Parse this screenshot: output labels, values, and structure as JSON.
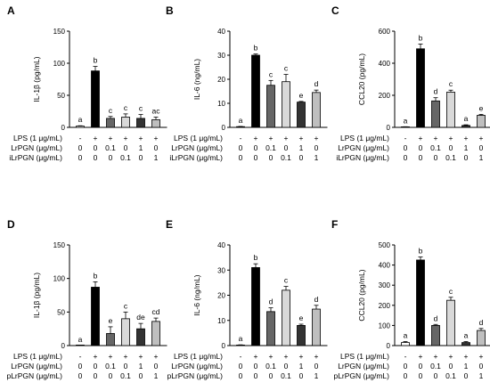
{
  "figure": {
    "bar_colors": [
      "#ffffff",
      "#000000",
      "#666666",
      "#d9d9d9",
      "#333333",
      "#bfbfbf"
    ],
    "condition_symbols": [
      "-",
      "+",
      "+",
      "+",
      "+",
      "+"
    ]
  },
  "chart_data": [
    {
      "panel": "A",
      "type": "bar",
      "ylabel": "IL-1β (pg/mL)",
      "ylim": [
        0,
        150
      ],
      "yticks": [
        "0",
        "50",
        "100",
        "150"
      ],
      "categories": [
        "1",
        "2",
        "3",
        "4",
        "5",
        "6"
      ],
      "values": [
        2,
        88,
        14,
        16,
        14,
        12
      ],
      "errors": [
        0.5,
        7,
        3,
        5,
        6,
        4
      ],
      "letters": [
        "a",
        "b",
        "c",
        "c",
        "c",
        "ac"
      ],
      "rows": [
        {
          "label": "LPS (1 μg/mL)",
          "cells": [
            "-",
            "+",
            "+",
            "+",
            "+",
            "+"
          ]
        },
        {
          "label": "LrPGN (μg/mL)",
          "cells": [
            "0",
            "0",
            "0.1",
            "0",
            "1",
            "0"
          ]
        },
        {
          "label": "iLrPGN (μg/mL)",
          "cells": [
            "0",
            "0",
            "0",
            "0.1",
            "0",
            "1"
          ]
        }
      ]
    },
    {
      "panel": "B",
      "type": "bar",
      "ylabel": "IL-6 (ng/mL)",
      "ylim": [
        0,
        40
      ],
      "yticks": [
        "0",
        "10",
        "20",
        "30",
        "40"
      ],
      "categories": [
        "1",
        "2",
        "3",
        "4",
        "5",
        "6"
      ],
      "values": [
        0.3,
        30,
        17.5,
        19,
        10.5,
        14.5
      ],
      "errors": [
        0.1,
        0.5,
        2,
        3,
        0.3,
        1
      ],
      "letters": [
        "a",
        "b",
        "c",
        "c",
        "e",
        "d"
      ],
      "rows": [
        {
          "label": "LPS (1 μg/mL)",
          "cells": [
            "-",
            "+",
            "+",
            "+",
            "+",
            "+"
          ]
        },
        {
          "label": "LrPGN (μg/mL)",
          "cells": [
            "0",
            "0",
            "0.1",
            "0",
            "1",
            "0"
          ]
        },
        {
          "label": "iLrPGN (μg/mL)",
          "cells": [
            "0",
            "0",
            "0",
            "0.1",
            "0",
            "1"
          ]
        }
      ]
    },
    {
      "panel": "C",
      "type": "bar",
      "ylabel": "CCL20 (pg/mL)",
      "ylim": [
        0,
        600
      ],
      "yticks": [
        "0",
        "200",
        "400",
        "600"
      ],
      "categories": [
        "1",
        "2",
        "3",
        "4",
        "5",
        "6"
      ],
      "values": [
        3,
        490,
        165,
        220,
        12,
        75
      ],
      "errors": [
        1,
        30,
        20,
        12,
        4,
        6
      ],
      "letters": [
        "a",
        "b",
        "d",
        "c",
        "a",
        "e"
      ],
      "rows": [
        {
          "label": "LPS (1 μg/mL)",
          "cells": [
            "-",
            "+",
            "+",
            "+",
            "+",
            "+"
          ]
        },
        {
          "label": "LrPGN (μg/mL)",
          "cells": [
            "0",
            "0",
            "0.1",
            "0",
            "1",
            "0"
          ]
        },
        {
          "label": "iLrPGN (μg/mL)",
          "cells": [
            "0",
            "0",
            "0",
            "0.1",
            "0",
            "1"
          ]
        }
      ]
    },
    {
      "panel": "D",
      "type": "bar",
      "ylabel": "IL-1β (pg/mL)",
      "ylim": [
        0,
        150
      ],
      "yticks": [
        "0",
        "50",
        "100",
        "150"
      ],
      "categories": [
        "1",
        "2",
        "3",
        "4",
        "5",
        "6"
      ],
      "values": [
        0,
        87,
        18,
        40,
        25,
        36
      ],
      "errors": [
        0,
        8,
        10,
        10,
        8,
        5
      ],
      "letters": [
        "a",
        "b",
        "e",
        "c",
        "de",
        "cd"
      ],
      "rows": [
        {
          "label": "LPS (1 μg/mL)",
          "cells": [
            "-",
            "+",
            "+",
            "+",
            "+",
            "+"
          ]
        },
        {
          "label": "LrPGN (μg/mL)",
          "cells": [
            "0",
            "0",
            "0.1",
            "0",
            "1",
            "0"
          ]
        },
        {
          "label": "pLrPGN (μg/mL)",
          "cells": [
            "0",
            "0",
            "0",
            "0.1",
            "0",
            "1"
          ]
        }
      ]
    },
    {
      "panel": "E",
      "type": "bar",
      "ylabel": "IL-6 (ng/mL)",
      "ylim": [
        0,
        40
      ],
      "yticks": [
        "0",
        "10",
        "20",
        "30",
        "40"
      ],
      "categories": [
        "1",
        "2",
        "3",
        "4",
        "5",
        "6"
      ],
      "values": [
        0.2,
        31,
        13.5,
        22,
        8,
        14.5
      ],
      "errors": [
        0.1,
        1.5,
        1.5,
        1.5,
        0.5,
        1.5
      ],
      "letters": [
        "a",
        "b",
        "d",
        "c",
        "e",
        "d"
      ],
      "rows": [
        {
          "label": "LPS (1 μg/mL)",
          "cells": [
            "-",
            "+",
            "+",
            "+",
            "+",
            "+"
          ]
        },
        {
          "label": "LrPGN (μg/mL)",
          "cells": [
            "0",
            "0",
            "0.1",
            "0",
            "1",
            "0"
          ]
        },
        {
          "label": "pLrPGN (μg/mL)",
          "cells": [
            "0",
            "0",
            "0",
            "0.1",
            "0",
            "1"
          ]
        }
      ]
    },
    {
      "panel": "F",
      "type": "bar",
      "ylabel": "CCL20 (pg/mL)",
      "ylim": [
        0,
        500
      ],
      "yticks": [
        "0",
        "100",
        "200",
        "300",
        "400",
        "500"
      ],
      "categories": [
        "1",
        "2",
        "3",
        "4",
        "5",
        "6"
      ],
      "values": [
        15,
        425,
        100,
        225,
        15,
        75
      ],
      "errors": [
        5,
        15,
        5,
        15,
        5,
        10
      ],
      "letters": [
        "a",
        "b",
        "d",
        "c",
        "a",
        "d"
      ],
      "rows": [
        {
          "label": "LPS (1 μg/mL)",
          "cells": [
            "-",
            "+",
            "+",
            "+",
            "+",
            "+"
          ]
        },
        {
          "label": "LrPGN (μg/mL)",
          "cells": [
            "0",
            "0",
            "0.1",
            "0",
            "1",
            "0"
          ]
        },
        {
          "label": "pLrPGN (μg/mL)",
          "cells": [
            "0",
            "0",
            "0",
            "0.1",
            "0",
            "1"
          ]
        }
      ]
    }
  ]
}
